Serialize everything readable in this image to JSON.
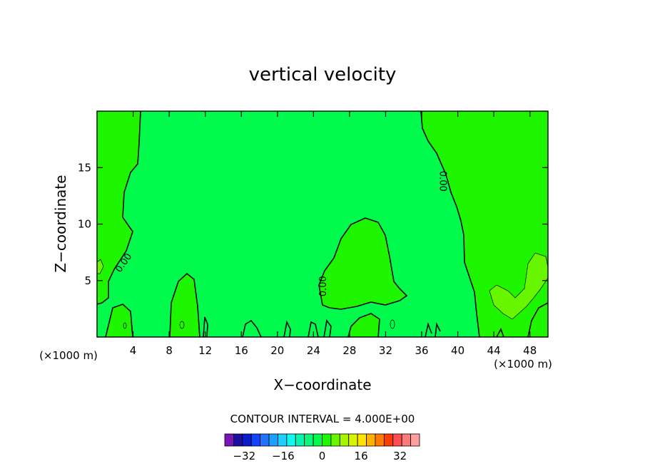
{
  "chart_data": {
    "type": "contour",
    "title": "vertical velocity",
    "xlabel": "X−coordinate",
    "ylabel": "Z−coordinate",
    "x_unit_left": "(×1000 m)",
    "x_unit_right": "(×1000 m)",
    "xlim": [
      0,
      50
    ],
    "ylim": [
      0,
      20
    ],
    "x_ticks": [
      4,
      8,
      12,
      16,
      20,
      24,
      28,
      32,
      36,
      40,
      44,
      48
    ],
    "y_ticks": [
      5,
      10,
      15
    ],
    "contour_interval_text": "CONTOUR INTERVAL = 4.000E+00",
    "contour_labels": [
      {
        "text": "0.00",
        "x": 2.9,
        "z": 6.6,
        "angle": -55
      },
      {
        "text": "0.00",
        "x": 25.0,
        "z": 4.5,
        "angle": -90
      },
      {
        "text": "0.00",
        "x": 38.4,
        "z": 13.8,
        "angle": 90
      }
    ],
    "colorbar": {
      "min": -40,
      "max": 40,
      "step": 4,
      "tick_labels": [
        "−32",
        "−16",
        "0",
        "16",
        "32"
      ],
      "tick_values": [
        -32,
        -16,
        0,
        16,
        32
      ],
      "colors": [
        "#7a16b8",
        "#1c0f9e",
        "#0a1ec8",
        "#1443ff",
        "#1f73ff",
        "#1aa0ff",
        "#1ccfff",
        "#14f7ef",
        "#0af3ac",
        "#0ef57a",
        "#00fb4c",
        "#1ef600",
        "#68f500",
        "#a5f500",
        "#d8f500",
        "#ffe400",
        "#ffb000",
        "#ff7c00",
        "#ff3c00",
        "#ff5050",
        "#ff7a7a",
        "#ff9e9e"
      ]
    },
    "fill_colors": {
      "background": "#00fb4c",
      "positive_region": "#1ef600",
      "strong_positive_region": "#68f500"
    }
  }
}
